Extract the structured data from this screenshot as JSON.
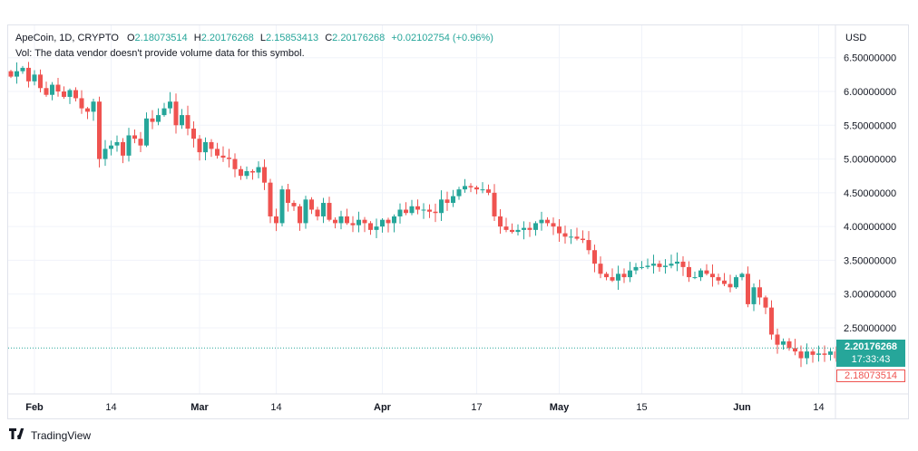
{
  "header": {
    "symbol": "ApeCoin, 1D, CRYPTO",
    "o_label": "O",
    "o_value": "2.18073514",
    "h_label": "H",
    "h_value": "2.20176268",
    "l_label": "L",
    "l_value": "2.15853413",
    "c_label": "C",
    "c_value": "2.20176268",
    "change": "+0.02102754 (+0.96%)",
    "volume_note": "Vol: The data vendor doesn't provide volume data for this symbol."
  },
  "price_scale": {
    "currency": "USD",
    "last_price": "2.20176268",
    "countdown": "17:33:43",
    "open_price": "2.18073514"
  },
  "brand": {
    "name": "TradingView",
    "logo": "tv-logo-icon"
  },
  "colors": {
    "up": "#26a69a",
    "down": "#ef5350",
    "grid": "#f0f3fa",
    "text": "#131722"
  },
  "chart_data": {
    "type": "candlestick",
    "y_ticks": [
      "6.50000000",
      "6.00000000",
      "5.50000000",
      "5.00000000",
      "4.50000000",
      "4.00000000",
      "3.50000000",
      "3.00000000",
      "2.50000000"
    ],
    "y_tick_values": [
      6.5,
      6.0,
      5.5,
      5.0,
      4.5,
      4.0,
      3.5,
      3.0,
      2.5
    ],
    "ylim": [
      1.95,
      6.75
    ],
    "x_ticks": [
      {
        "label": "Feb",
        "major": true,
        "index": 4
      },
      {
        "label": "14",
        "major": false,
        "index": 17
      },
      {
        "label": "Mar",
        "major": true,
        "index": 32
      },
      {
        "label": "14",
        "major": false,
        "index": 45
      },
      {
        "label": "Apr",
        "major": true,
        "index": 63
      },
      {
        "label": "17",
        "major": false,
        "index": 79
      },
      {
        "label": "May",
        "major": true,
        "index": 93
      },
      {
        "label": "15",
        "major": false,
        "index": 107
      },
      {
        "label": "Jun",
        "major": true,
        "index": 124
      },
      {
        "label": "14",
        "major": false,
        "index": 137
      }
    ],
    "close_start": 6.3,
    "closes": [
      6.22,
      6.3,
      6.35,
      6.15,
      6.25,
      6.05,
      5.95,
      6.1,
      6.0,
      5.92,
      6.02,
      5.9,
      5.75,
      5.7,
      5.85,
      5.0,
      5.15,
      5.2,
      5.25,
      5.05,
      5.35,
      5.3,
      5.2,
      5.6,
      5.55,
      5.65,
      5.75,
      5.85,
      5.5,
      5.65,
      5.45,
      5.3,
      5.1,
      5.25,
      5.15,
      5.05,
      5.02,
      5.0,
      4.85,
      4.75,
      4.82,
      4.8,
      4.88,
      4.65,
      4.15,
      4.05,
      4.55,
      4.35,
      4.3,
      4.05,
      4.4,
      4.25,
      4.15,
      4.35,
      4.1,
      4.05,
      4.15,
      4.05,
      4.02,
      4.1,
      4.05,
      3.95,
      4.0,
      4.1,
      4.05,
      4.15,
      4.25,
      4.2,
      4.3,
      4.25,
      4.25,
      4.22,
      4.2,
      4.4,
      4.35,
      4.45,
      4.55,
      4.6,
      4.58,
      4.55,
      4.55,
      4.5,
      4.15,
      4.0,
      3.95,
      3.92,
      3.95,
      3.98,
      3.95,
      4.05,
      4.1,
      4.05,
      4.0,
      3.9,
      3.85,
      3.85,
      3.82,
      3.8,
      3.65,
      3.45,
      3.3,
      3.25,
      3.2,
      3.3,
      3.25,
      3.35,
      3.4,
      3.4,
      3.42,
      3.45,
      3.4,
      3.42,
      3.45,
      3.48,
      3.4,
      3.25,
      3.25,
      3.35,
      3.3,
      3.25,
      3.2,
      3.15,
      3.1,
      3.25,
      3.3,
      2.85,
      3.1,
      2.95,
      2.8,
      2.4,
      2.25,
      2.3,
      2.2,
      2.15,
      2.05,
      2.15,
      2.1,
      2.12,
      2.1,
      2.15,
      2.05,
      2.18,
      2.2
    ]
  }
}
